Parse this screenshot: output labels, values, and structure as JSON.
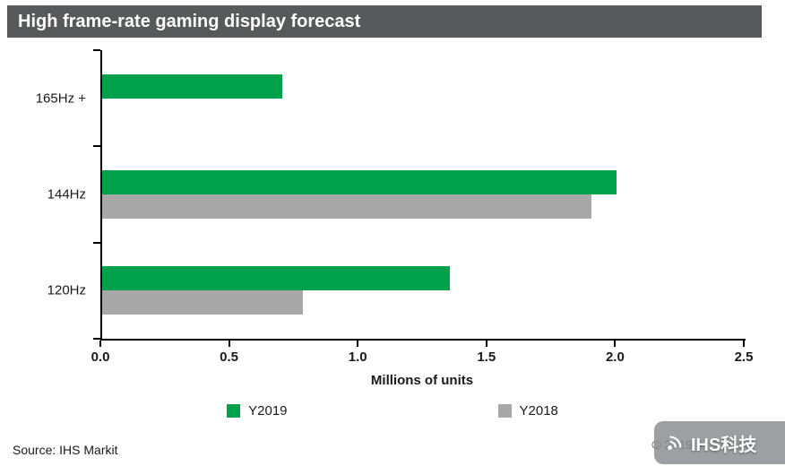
{
  "title": "High frame-rate gaming display forecast",
  "source_label": "Source: IHS Markit",
  "copyright_label": "© 2019 IHS Markit",
  "watermark_label": "IHS科技",
  "colors": {
    "header_bg": "#58595b",
    "y2019_green": "#00a14b",
    "y2018_gray": "#a8a8a8",
    "axis": "#000000"
  },
  "chart_data": {
    "type": "bar",
    "orientation": "horizontal",
    "title": "High frame-rate gaming display forecast",
    "categories": [
      "165Hz +",
      "144Hz",
      "120Hz"
    ],
    "series": [
      {
        "name": "Y2019",
        "color": "#00a14b",
        "values": [
          0.7,
          2.0,
          1.35
        ]
      },
      {
        "name": "Y2018",
        "color": "#a8a8a8",
        "values": [
          null,
          1.9,
          0.78
        ]
      }
    ],
    "xlabel": "Millions of units",
    "ylabel": "",
    "xlim": [
      0,
      2.5
    ],
    "xticks": [
      0.0,
      0.5,
      1.0,
      1.5,
      2.0,
      2.5
    ],
    "grid": false,
    "legend_position": "bottom"
  }
}
